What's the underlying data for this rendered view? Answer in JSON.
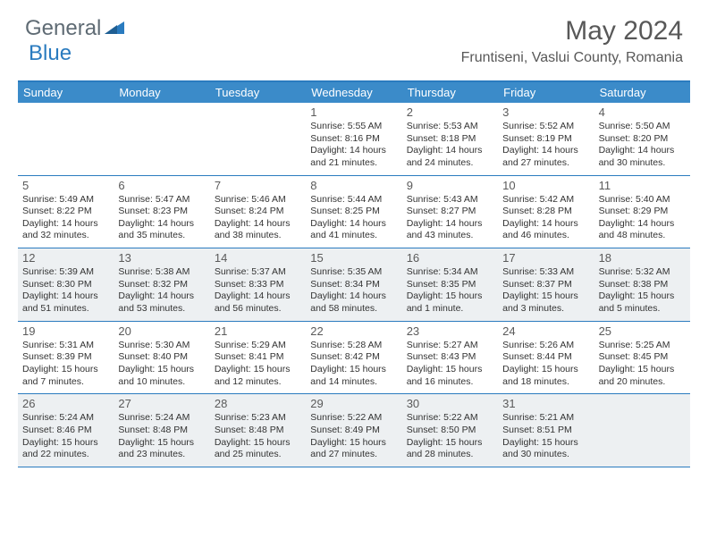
{
  "logo": {
    "text1": "General",
    "text2": "Blue"
  },
  "title": "May 2024",
  "location": "Fruntiseni, Vaslui County, Romania",
  "colors": {
    "header_bg": "#3b8bc9",
    "border": "#2a7bbf",
    "shaded_bg": "#edf0f2",
    "text_gray": "#585858"
  },
  "weekdays": [
    "Sunday",
    "Monday",
    "Tuesday",
    "Wednesday",
    "Thursday",
    "Friday",
    "Saturday"
  ],
  "weeks": [
    [
      {
        "day": "",
        "lines": [],
        "shaded": false
      },
      {
        "day": "",
        "lines": [],
        "shaded": false
      },
      {
        "day": "",
        "lines": [],
        "shaded": false
      },
      {
        "day": "1",
        "lines": [
          "Sunrise: 5:55 AM",
          "Sunset: 8:16 PM",
          "Daylight: 14 hours",
          "and 21 minutes."
        ],
        "shaded": false
      },
      {
        "day": "2",
        "lines": [
          "Sunrise: 5:53 AM",
          "Sunset: 8:18 PM",
          "Daylight: 14 hours",
          "and 24 minutes."
        ],
        "shaded": false
      },
      {
        "day": "3",
        "lines": [
          "Sunrise: 5:52 AM",
          "Sunset: 8:19 PM",
          "Daylight: 14 hours",
          "and 27 minutes."
        ],
        "shaded": false
      },
      {
        "day": "4",
        "lines": [
          "Sunrise: 5:50 AM",
          "Sunset: 8:20 PM",
          "Daylight: 14 hours",
          "and 30 minutes."
        ],
        "shaded": false
      }
    ],
    [
      {
        "day": "5",
        "lines": [
          "Sunrise: 5:49 AM",
          "Sunset: 8:22 PM",
          "Daylight: 14 hours",
          "and 32 minutes."
        ],
        "shaded": false
      },
      {
        "day": "6",
        "lines": [
          "Sunrise: 5:47 AM",
          "Sunset: 8:23 PM",
          "Daylight: 14 hours",
          "and 35 minutes."
        ],
        "shaded": false
      },
      {
        "day": "7",
        "lines": [
          "Sunrise: 5:46 AM",
          "Sunset: 8:24 PM",
          "Daylight: 14 hours",
          "and 38 minutes."
        ],
        "shaded": false
      },
      {
        "day": "8",
        "lines": [
          "Sunrise: 5:44 AM",
          "Sunset: 8:25 PM",
          "Daylight: 14 hours",
          "and 41 minutes."
        ],
        "shaded": false
      },
      {
        "day": "9",
        "lines": [
          "Sunrise: 5:43 AM",
          "Sunset: 8:27 PM",
          "Daylight: 14 hours",
          "and 43 minutes."
        ],
        "shaded": false
      },
      {
        "day": "10",
        "lines": [
          "Sunrise: 5:42 AM",
          "Sunset: 8:28 PM",
          "Daylight: 14 hours",
          "and 46 minutes."
        ],
        "shaded": false
      },
      {
        "day": "11",
        "lines": [
          "Sunrise: 5:40 AM",
          "Sunset: 8:29 PM",
          "Daylight: 14 hours",
          "and 48 minutes."
        ],
        "shaded": false
      }
    ],
    [
      {
        "day": "12",
        "lines": [
          "Sunrise: 5:39 AM",
          "Sunset: 8:30 PM",
          "Daylight: 14 hours",
          "and 51 minutes."
        ],
        "shaded": true
      },
      {
        "day": "13",
        "lines": [
          "Sunrise: 5:38 AM",
          "Sunset: 8:32 PM",
          "Daylight: 14 hours",
          "and 53 minutes."
        ],
        "shaded": true
      },
      {
        "day": "14",
        "lines": [
          "Sunrise: 5:37 AM",
          "Sunset: 8:33 PM",
          "Daylight: 14 hours",
          "and 56 minutes."
        ],
        "shaded": true
      },
      {
        "day": "15",
        "lines": [
          "Sunrise: 5:35 AM",
          "Sunset: 8:34 PM",
          "Daylight: 14 hours",
          "and 58 minutes."
        ],
        "shaded": true
      },
      {
        "day": "16",
        "lines": [
          "Sunrise: 5:34 AM",
          "Sunset: 8:35 PM",
          "Daylight: 15 hours",
          "and 1 minute."
        ],
        "shaded": true
      },
      {
        "day": "17",
        "lines": [
          "Sunrise: 5:33 AM",
          "Sunset: 8:37 PM",
          "Daylight: 15 hours",
          "and 3 minutes."
        ],
        "shaded": true
      },
      {
        "day": "18",
        "lines": [
          "Sunrise: 5:32 AM",
          "Sunset: 8:38 PM",
          "Daylight: 15 hours",
          "and 5 minutes."
        ],
        "shaded": true
      }
    ],
    [
      {
        "day": "19",
        "lines": [
          "Sunrise: 5:31 AM",
          "Sunset: 8:39 PM",
          "Daylight: 15 hours",
          "and 7 minutes."
        ],
        "shaded": false
      },
      {
        "day": "20",
        "lines": [
          "Sunrise: 5:30 AM",
          "Sunset: 8:40 PM",
          "Daylight: 15 hours",
          "and 10 minutes."
        ],
        "shaded": false
      },
      {
        "day": "21",
        "lines": [
          "Sunrise: 5:29 AM",
          "Sunset: 8:41 PM",
          "Daylight: 15 hours",
          "and 12 minutes."
        ],
        "shaded": false
      },
      {
        "day": "22",
        "lines": [
          "Sunrise: 5:28 AM",
          "Sunset: 8:42 PM",
          "Daylight: 15 hours",
          "and 14 minutes."
        ],
        "shaded": false
      },
      {
        "day": "23",
        "lines": [
          "Sunrise: 5:27 AM",
          "Sunset: 8:43 PM",
          "Daylight: 15 hours",
          "and 16 minutes."
        ],
        "shaded": false
      },
      {
        "day": "24",
        "lines": [
          "Sunrise: 5:26 AM",
          "Sunset: 8:44 PM",
          "Daylight: 15 hours",
          "and 18 minutes."
        ],
        "shaded": false
      },
      {
        "day": "25",
        "lines": [
          "Sunrise: 5:25 AM",
          "Sunset: 8:45 PM",
          "Daylight: 15 hours",
          "and 20 minutes."
        ],
        "shaded": false
      }
    ],
    [
      {
        "day": "26",
        "lines": [
          "Sunrise: 5:24 AM",
          "Sunset: 8:46 PM",
          "Daylight: 15 hours",
          "and 22 minutes."
        ],
        "shaded": true
      },
      {
        "day": "27",
        "lines": [
          "Sunrise: 5:24 AM",
          "Sunset: 8:48 PM",
          "Daylight: 15 hours",
          "and 23 minutes."
        ],
        "shaded": true
      },
      {
        "day": "28",
        "lines": [
          "Sunrise: 5:23 AM",
          "Sunset: 8:48 PM",
          "Daylight: 15 hours",
          "and 25 minutes."
        ],
        "shaded": true
      },
      {
        "day": "29",
        "lines": [
          "Sunrise: 5:22 AM",
          "Sunset: 8:49 PM",
          "Daylight: 15 hours",
          "and 27 minutes."
        ],
        "shaded": true
      },
      {
        "day": "30",
        "lines": [
          "Sunrise: 5:22 AM",
          "Sunset: 8:50 PM",
          "Daylight: 15 hours",
          "and 28 minutes."
        ],
        "shaded": true
      },
      {
        "day": "31",
        "lines": [
          "Sunrise: 5:21 AM",
          "Sunset: 8:51 PM",
          "Daylight: 15 hours",
          "and 30 minutes."
        ],
        "shaded": true
      },
      {
        "day": "",
        "lines": [],
        "shaded": true
      }
    ]
  ]
}
